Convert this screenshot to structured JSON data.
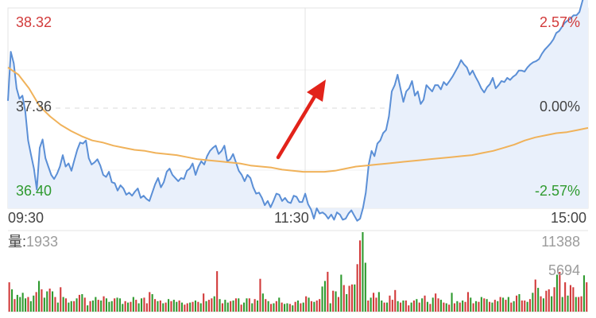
{
  "chart_data": {
    "type": "line",
    "price_axis": {
      "high": "38.32",
      "mid": "37.36",
      "low": "36.40",
      "high_val": 38.32,
      "mid_val": 37.36,
      "low_val": 36.4
    },
    "percent_axis": {
      "high": "2.57%",
      "mid": "0.00%",
      "low": "-2.57%"
    },
    "time_axis": [
      "09:30",
      "11:30",
      "15:00"
    ],
    "colors": {
      "price_line": "#5b8fd6",
      "price_fill": "#e9f0fb",
      "avg_line": "#f0b25a",
      "up": "#d23b3b",
      "down": "#2f9a2f",
      "grid": "#e3e3e3",
      "arrow": "#e2231a"
    },
    "price_series": [
      37.43,
      37.9,
      37.79,
      37.55,
      37.45,
      37.48,
      37.33,
      37.05,
      36.91,
      36.78,
      36.58,
      36.98,
      37.06,
      36.88,
      36.8,
      36.72,
      36.68,
      36.73,
      36.8,
      36.91,
      36.8,
      36.83,
      36.76,
      36.86,
      36.96,
      37.03,
      37.02,
      37.05,
      36.88,
      36.82,
      36.84,
      36.87,
      36.81,
      36.72,
      36.7,
      36.75,
      36.65,
      36.64,
      36.57,
      36.62,
      36.59,
      36.53,
      36.55,
      36.52,
      36.56,
      36.59,
      36.5,
      36.52,
      36.49,
      36.47,
      36.55,
      36.63,
      36.69,
      36.6,
      36.65,
      36.75,
      36.78,
      36.72,
      36.69,
      36.66,
      36.69,
      36.68,
      36.76,
      36.78,
      36.83,
      36.72,
      36.8,
      36.85,
      36.82,
      36.9,
      36.95,
      36.98,
      37.0,
      36.92,
      36.95,
      37.0,
      36.85,
      36.87,
      36.92,
      36.84,
      36.76,
      36.72,
      36.66,
      36.72,
      36.69,
      36.6,
      36.54,
      36.55,
      36.5,
      36.43,
      36.47,
      36.41,
      36.47,
      36.54,
      36.53,
      36.47,
      36.5,
      36.46,
      36.45,
      36.52,
      36.51,
      36.46,
      36.46,
      36.54,
      36.44,
      36.39,
      36.3,
      36.4,
      36.35,
      36.36,
      36.34,
      36.3,
      36.34,
      36.29,
      36.36,
      36.34,
      36.29,
      36.3,
      36.35,
      36.38,
      36.33,
      36.28,
      36.3,
      36.4,
      36.55,
      36.82,
      36.95,
      36.9,
      37.02,
      37.05,
      37.12,
      37.15,
      37.28,
      37.52,
      37.58,
      37.68,
      37.55,
      37.42,
      37.52,
      37.55,
      37.62,
      37.48,
      37.52,
      37.4,
      37.44,
      37.58,
      37.55,
      37.52,
      37.58,
      37.58,
      37.54,
      37.61,
      37.58,
      37.62,
      37.66,
      37.71,
      37.76,
      37.82,
      37.78,
      37.75,
      37.68,
      37.72,
      37.66,
      37.61,
      37.55,
      37.51,
      37.56,
      37.59,
      37.65,
      37.55,
      37.58,
      37.62,
      37.61,
      37.65,
      37.63,
      37.66,
      37.68,
      37.72,
      37.72,
      37.71,
      37.75,
      37.78,
      37.8,
      37.81,
      37.83,
      37.88,
      37.92,
      37.95,
      37.98,
      38.02,
      38.08,
      38.1,
      38.14,
      38.18,
      38.2,
      38.22,
      38.25,
      38.25,
      38.28,
      38.38,
      38.48,
      38.43
    ],
    "avg_series": [
      37.75,
      37.68,
      37.55,
      37.38,
      37.28,
      37.2,
      37.14,
      37.09,
      37.05,
      37.03,
      37.0,
      36.98,
      36.96,
      36.95,
      36.93,
      36.92,
      36.91,
      36.89,
      36.87,
      36.86,
      36.85,
      36.84,
      36.83,
      36.81,
      36.8,
      36.79,
      36.77,
      36.76,
      36.75,
      36.75,
      36.75,
      36.76,
      36.78,
      36.8,
      36.81,
      36.82,
      36.83,
      36.84,
      36.85,
      36.86,
      36.87,
      36.88,
      36.89,
      36.9,
      36.91,
      36.93,
      36.95,
      36.98,
      37.01,
      37.05,
      37.08,
      37.1,
      37.12,
      37.13,
      37.15,
      37.17
    ],
    "volume_axis": {
      "max": 11388,
      "max_label": "11388",
      "mid_label": "5694"
    },
    "volume_title": "量:",
    "current_volume": "1933",
    "volume_series": [
      4200,
      3200,
      1800,
      2400,
      2100,
      2700,
      1900,
      2100,
      1500,
      2300,
      2800,
      4400,
      3200,
      2000,
      2900,
      3300,
      2900,
      2100,
      1300,
      3500,
      2100,
      1900,
      1300,
      1500,
      1500,
      1900,
      2400,
      2500,
      2000,
      900,
      1500,
      1600,
      2100,
      1700,
      1600,
      2200,
      1900,
      1400,
      1500,
      1900,
      2000,
      1900,
      1100,
      1500,
      1300,
      1400,
      2100,
      1700,
      1200,
      1900,
      2000,
      1200,
      2800,
      2500,
      1800,
      1500,
      1600,
      1200,
      1300,
      1800,
      1500,
      1700,
      1400,
      1600,
      1300,
      1000,
      1200,
      1300,
      1400,
      1600,
      1400,
      1200,
      2600,
      1500,
      1700,
      1900,
      2200,
      5800,
      1800,
      1200,
      1700,
      1300,
      1500,
      1600,
      1900,
      1900,
      1000,
      1300,
      1900,
      1900,
      1200,
      1800,
      1600,
      4700,
      2600,
      1800,
      1500,
      1100,
      1200,
      1500,
      2000,
      1300,
      1100,
      1200,
      1100,
      900,
      1400,
      1600,
      1200,
      1300,
      2200,
      2000,
      1500,
      1400,
      1600,
      1800,
      3600,
      4400,
      5700,
      1200,
      3000,
      2900,
      2100,
      5300,
      3800,
      2500,
      3700,
      3900,
      3900,
      6800,
      10200,
      11388,
      7000,
      1600,
      2000,
      2700,
      2000,
      2800,
      1600,
      1300,
      1300,
      2300,
      1700,
      3100,
      1500,
      1300,
      1600,
      1600,
      900,
      1300,
      1600,
      1800,
      1300,
      1900,
      2300,
      1400,
      1100,
      2000,
      2600,
      1900,
      1700,
      1300,
      1200,
      1000,
      2700,
      1200,
      1500,
      1300,
      1600,
      1400,
      2800,
      2000,
      1200,
      1500,
      1400,
      2100,
      1900,
      1800,
      1400,
      1300,
      1700,
      1500,
      2100,
      2000,
      1700,
      2100,
      1300,
      1500,
      2300,
      2500,
      1600,
      1600,
      1400,
      1800,
      2700,
      4600,
      3400,
      2200,
      1900,
      3000,
      3200,
      2200,
      3500,
      5300,
      5694,
      2100,
      4200,
      2300,
      3800,
      3500,
      2100,
      2100,
      2200,
      5200,
      4200
    ],
    "volume_dirs": "rgrggggrggrgrggrgrgrgrggrgrgrgrggrgrgggrgggrgrgrggrrrgrgrgrgrggrgrrgrgrgrgrrgrgrggrgrgrggrgrgrgrgrgrgrggrgrgrgrgrgrrggrgrgrgrgrrgrrggrgrrggrgrrrgrgrrgrgrgrgrgrrgrgrgrgrgrrgrgrgrgrgrgrgrgrgrgrrgrgrgrgrrgrgrgrgrrgrrgrgrgrgrrgrrgrgrgrgrrgrgrrg"
  }
}
